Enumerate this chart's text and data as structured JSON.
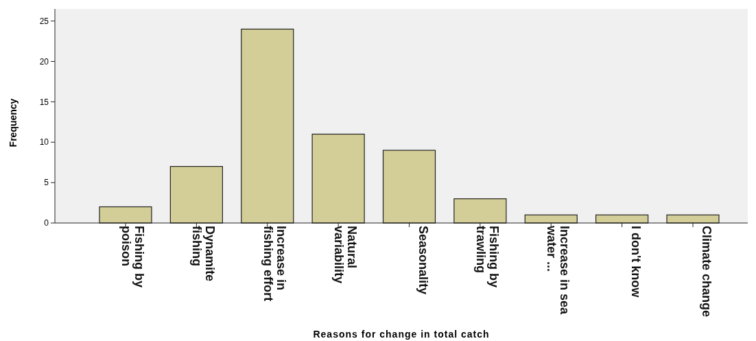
{
  "chart_data": {
    "type": "bar",
    "xlabel": "Reasons for change in total catch",
    "ylabel": "Frequency",
    "categories": [
      "Fishing by poison",
      "Dynamite fishing",
      "Increase in fishing effort",
      "Natural variability",
      "Seasonality",
      "Fishing by trawling",
      "Increase in sea water ...",
      "I don't know",
      "Climate change"
    ],
    "values": [
      2,
      7,
      24,
      11,
      9,
      3,
      1,
      1,
      1
    ],
    "color": "#d3ce97",
    "ylim": [
      0,
      26.5
    ],
    "yticks": [
      0,
      5,
      10,
      15,
      20,
      25
    ],
    "grid": false
  }
}
